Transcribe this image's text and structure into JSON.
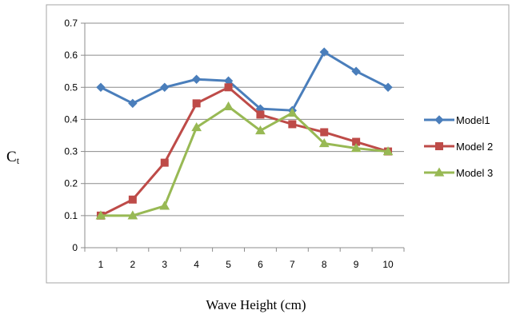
{
  "chart_data": {
    "type": "line",
    "title": "",
    "xlabel": "Wave Height (cm)",
    "ylabel": "C",
    "ylabel_subscript": "t",
    "x": [
      1,
      2,
      3,
      4,
      5,
      6,
      7,
      8,
      9,
      10
    ],
    "ylim": [
      0,
      0.7
    ],
    "yticks": [
      "0",
      "0.1",
      "0.2",
      "0.3",
      "0.4",
      "0.5",
      "0.6",
      "0.7"
    ],
    "grid": "horizontal",
    "legend_position": "right",
    "series": [
      {
        "name": "Model1",
        "color": "#4a7ebb",
        "marker": "diamond",
        "values": [
          0.5,
          0.45,
          0.5,
          0.525,
          0.52,
          0.433,
          0.428,
          0.61,
          0.55,
          0.5
        ]
      },
      {
        "name": "Model 2",
        "color": "#be4b48",
        "marker": "square",
        "values": [
          0.1,
          0.15,
          0.265,
          0.45,
          0.5,
          0.415,
          0.385,
          0.36,
          0.33,
          0.3
        ]
      },
      {
        "name": "Model 3",
        "color": "#98b954",
        "marker": "triangle",
        "values": [
          0.1,
          0.1,
          0.13,
          0.375,
          0.44,
          0.365,
          0.42,
          0.325,
          0.31,
          0.3
        ]
      }
    ]
  }
}
